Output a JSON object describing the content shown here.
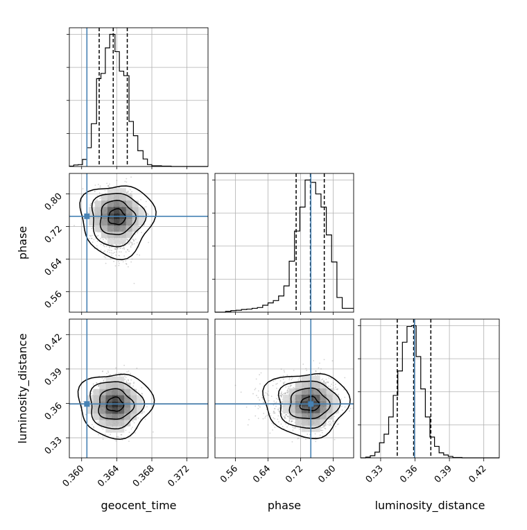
{
  "chart_data": {
    "type": "corner",
    "parameters": [
      "geocent_time",
      "phase",
      "luminosity_distance"
    ],
    "axis_labels": {
      "x": [
        "geocent_time",
        "phase",
        "luminosity_distance"
      ],
      "y": [
        "phase",
        "luminosity_distance"
      ]
    },
    "colors": {
      "truth": "#4682b4",
      "hist": "#000000",
      "points": "#7f7f7f",
      "grid": "#b0b0b0"
    },
    "grid": true,
    "ranges": {
      "geocent_time": [
        0.3586,
        0.3744
      ],
      "phase": [
        0.51,
        0.85
      ],
      "luminosity_distance": [
        0.3125,
        0.4335
      ]
    },
    "ticks": {
      "geocent_time": {
        "values": [
          0.36,
          0.364,
          0.368,
          0.372
        ],
        "labels": [
          "0.360",
          "0.364",
          "0.368",
          "0.372"
        ]
      },
      "phase": {
        "values": [
          0.56,
          0.64,
          0.72,
          0.8
        ],
        "labels": [
          "0.56",
          "0.64",
          "0.72",
          "0.80"
        ]
      },
      "luminosity_distance": {
        "values": [
          0.33,
          0.36,
          0.39,
          0.42
        ],
        "labels": [
          "0.33",
          "0.36",
          "0.39",
          "0.42"
        ]
      }
    },
    "truths": {
      "geocent_time": 0.3606,
      "phase": 0.745,
      "luminosity_distance": 0.3595
    },
    "quantiles": {
      "geocent_time": [
        0.362,
        0.3636,
        0.3652
      ],
      "phase": [
        0.709,
        0.744,
        0.778
      ],
      "luminosity_distance": [
        0.3445,
        0.3588,
        0.3738
      ]
    },
    "histograms": {
      "geocent_time": {
        "edges": [
          0.3586,
          0.3591,
          0.3596,
          0.3601,
          0.3606,
          0.3611,
          0.3617,
          0.3622,
          0.3627,
          0.3632,
          0.3638,
          0.3643,
          0.3648,
          0.3654,
          0.3659,
          0.3664,
          0.367,
          0.3675,
          0.368,
          0.3686,
          0.3691,
          0.3696,
          0.3702,
          0.3707,
          0.3712,
          0.3718,
          0.3744
        ],
        "counts": [
          0.5,
          2,
          2.5,
          9.5,
          25,
          57,
          117,
          124,
          158,
          176,
          153,
          127,
          121,
          60,
          41,
          21,
          10,
          2.5,
          1,
          1,
          0.5,
          0.5,
          0,
          0,
          0,
          0
        ]
      },
      "phase": {
        "edges": [
          0.51,
          0.536,
          0.549,
          0.562,
          0.575,
          0.588,
          0.601,
          0.614,
          0.627,
          0.64,
          0.653,
          0.666,
          0.679,
          0.692,
          0.705,
          0.718,
          0.731,
          0.744,
          0.757,
          0.77,
          0.783,
          0.796,
          0.809,
          0.822,
          0.835,
          0.85
        ],
        "counts": [
          0,
          1,
          2,
          2.5,
          3.5,
          4,
          5,
          6,
          9,
          12,
          15,
          21,
          34,
          66,
          105,
          136,
          171,
          168,
          153,
          136,
          100,
          65,
          19,
          5,
          5
        ]
      },
      "luminosity_distance": {
        "edges": [
          0.3125,
          0.317,
          0.321,
          0.325,
          0.329,
          0.333,
          0.337,
          0.341,
          0.345,
          0.349,
          0.353,
          0.357,
          0.361,
          0.365,
          0.369,
          0.373,
          0.377,
          0.381,
          0.385,
          0.389,
          0.393,
          0.397,
          0.401,
          0.405,
          0.4335
        ],
        "counts": [
          0,
          1,
          3,
          8,
          21,
          33,
          57,
          87,
          121,
          161,
          183,
          184,
          141,
          96,
          57,
          29,
          16,
          7,
          4,
          2,
          0.5,
          0.5,
          0,
          0
        ]
      }
    },
    "panels_2d": [
      {
        "row": 1,
        "col": 0,
        "x": "geocent_time",
        "y": "phase",
        "center": [
          0.364,
          0.745
        ],
        "spread": [
          0.0012,
          0.032
        ],
        "skew_y": -1
      },
      {
        "row": 2,
        "col": 0,
        "x": "geocent_time",
        "y": "luminosity_distance",
        "center": [
          0.3638,
          0.359
        ],
        "spread": [
          0.0012,
          0.011
        ],
        "skew_y": 0
      },
      {
        "row": 2,
        "col": 1,
        "x": "phase",
        "y": "luminosity_distance",
        "center": [
          0.745,
          0.3595
        ],
        "spread": [
          0.032,
          0.011
        ],
        "skew_x": -1
      }
    ]
  }
}
